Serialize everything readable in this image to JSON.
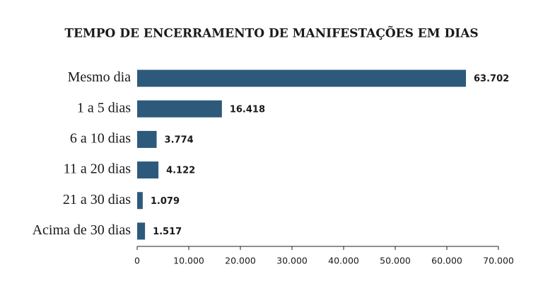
{
  "chart_data": {
    "type": "hbar",
    "title": "TEMPO DE ENCERRAMENTO DE MANIFESTAÇÕES EM DIAS",
    "categories": [
      "Mesmo dia",
      "1 a 5 dias",
      "6 a 10 dias",
      "11 a 20 dias",
      "21 a 30 dias",
      "Acima de 30 dias"
    ],
    "values": [
      63702,
      16418,
      3774,
      4122,
      1079,
      1517
    ],
    "value_labels": [
      "63.702",
      "16.418",
      "3.774",
      "4.122",
      "1.079",
      "1.517"
    ],
    "color": "#2d5a7b",
    "xlim": [
      0,
      70000
    ],
    "xticks": [
      0,
      {
        "value": 10000,
        "label": "10.000"
      },
      {
        "value": 20000,
        "label": "20.000"
      },
      {
        "value": 30000,
        "label": "30.000"
      },
      {
        "value": 40000,
        "label": "40.000"
      },
      {
        "value": 50000,
        "label": "50.000"
      },
      {
        "value": 60000,
        "label": "60.000"
      },
      {
        "value": 70000,
        "label": "70.000"
      }
    ],
    "grid": false
  }
}
